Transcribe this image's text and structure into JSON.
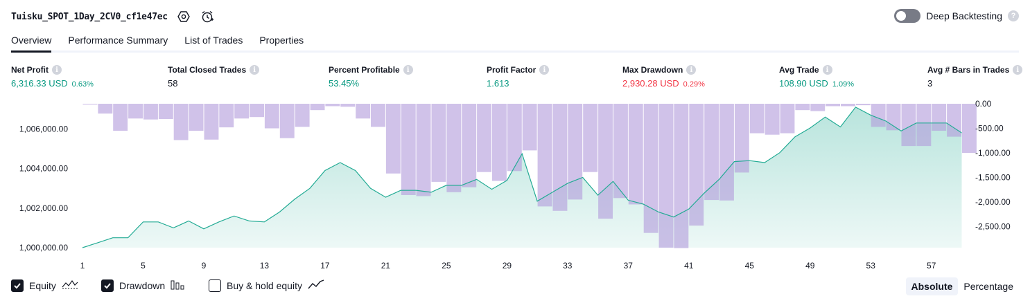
{
  "header": {
    "title": "Tuisku_SPOT_1Day_2CV0_cf1e47ec",
    "settings_icon": "settings-hex-icon",
    "alarm_icon": "alarm-clock-icon"
  },
  "deep_backtesting": {
    "label": "Deep Backtesting",
    "enabled": false,
    "help_icon": "question-icon"
  },
  "tabs": [
    {
      "label": "Overview",
      "active": true
    },
    {
      "label": "Performance Summary",
      "active": false
    },
    {
      "label": "List of Trades",
      "active": false
    },
    {
      "label": "Properties",
      "active": false
    }
  ],
  "metrics": [
    {
      "label": "Net Profit",
      "value": "6,316.33 USD",
      "pct": "0.63%",
      "color": "#089981"
    },
    {
      "label": "Total Closed Trades",
      "value": "58",
      "pct": "",
      "color": "#131722"
    },
    {
      "label": "Percent Profitable",
      "value": "53.45%",
      "pct": "",
      "color": "#089981"
    },
    {
      "label": "Profit Factor",
      "value": "1.613",
      "pct": "",
      "color": "#089981"
    },
    {
      "label": "Max Drawdown",
      "value": "2,930.28 USD",
      "pct": "0.29%",
      "color": "#f23645"
    },
    {
      "label": "Avg Trade",
      "value": "108.90 USD",
      "pct": "1.09%",
      "color": "#089981"
    },
    {
      "label": "Avg # Bars in Trades",
      "value": "3",
      "pct": "",
      "color": "#131722"
    }
  ],
  "info_glyph": "i",
  "help_glyph": "?",
  "chart_data": {
    "type": "area",
    "left_axis_ticks": [
      "1,006,000.00",
      "1,004,000.00",
      "1,002,000.00",
      "1,000,000.00"
    ],
    "left_axis_values": [
      1006000,
      1004000,
      1002000,
      1000000
    ],
    "right_axis_ticks": [
      "0.00",
      "-500.00",
      "-1,000.00",
      "-1,500.00",
      "-2,000.00",
      "-2,500.00"
    ],
    "right_axis_values": [
      0,
      -500,
      -1000,
      -1500,
      -2000,
      -2500
    ],
    "x_ticks": [
      "1",
      "5",
      "9",
      "13",
      "17",
      "21",
      "25",
      "29",
      "33",
      "37",
      "41",
      "45",
      "49",
      "53",
      "57"
    ],
    "x_tick_values": [
      1,
      5,
      9,
      13,
      17,
      21,
      25,
      29,
      33,
      37,
      41,
      45,
      49,
      53,
      57
    ],
    "equity_ylim": [
      1000000,
      1007200
    ],
    "drawdown_ylim": [
      -2930,
      0
    ],
    "equity": {
      "name": "Equity",
      "x": [
        1,
        2,
        3,
        4,
        5,
        6,
        7,
        8,
        9,
        10,
        11,
        12,
        13,
        14,
        15,
        16,
        17,
        18,
        19,
        20,
        21,
        22,
        23,
        24,
        25,
        26,
        27,
        28,
        29,
        30,
        31,
        32,
        33,
        34,
        35,
        36,
        37,
        38,
        39,
        40,
        41,
        42,
        43,
        44,
        45,
        46,
        47,
        48,
        49,
        50,
        51,
        52,
        53,
        54,
        55,
        56,
        57,
        58,
        59
      ],
      "values": [
        1000000,
        1000250,
        1000500,
        1000500,
        1001300,
        1001300,
        1001000,
        1001350,
        1000950,
        1001300,
        1001600,
        1001350,
        1001300,
        1001800,
        1002450,
        1003000,
        1003900,
        1004300,
        1003900,
        1003000,
        1002550,
        1002900,
        1002900,
        1002800,
        1003150,
        1003150,
        1003450,
        1002950,
        1003400,
        1004750,
        1002350,
        1002800,
        1003250,
        1003550,
        1002650,
        1003350,
        1002400,
        1002200,
        1001800,
        1001550,
        1001950,
        1002750,
        1003450,
        1004350,
        1004400,
        1004300,
        1004800,
        1005600,
        1006050,
        1006600,
        1006100,
        1007100,
        1006700,
        1006400,
        1005900,
        1006300,
        1006300,
        1006300,
        1005800
      ]
    },
    "drawdown": {
      "name": "Drawdown",
      "values": [
        -15,
        -200,
        -550,
        -300,
        -320,
        -310,
        -740,
        -550,
        -730,
        -480,
        -300,
        -270,
        -500,
        -700,
        -470,
        -130,
        -50,
        -60,
        -300,
        -470,
        -1420,
        -1860,
        -1880,
        -1590,
        -1800,
        -1700,
        -1390,
        -1570,
        -1370,
        -950,
        -2090,
        -2180,
        -1950,
        -1390,
        -2340,
        -1920,
        -2050,
        -2630,
        -2930,
        -2940,
        -2480,
        -1960,
        -1970,
        -1400,
        -600,
        -630,
        -600,
        -130,
        -150,
        -50,
        -50,
        -30,
        -470,
        -540,
        -860,
        -860,
        -550,
        -670,
        -1000
      ]
    },
    "legend": [
      {
        "label": "Equity",
        "checked": true,
        "icon": "equity-line-icon"
      },
      {
        "label": "Drawdown",
        "checked": true,
        "icon": "drawdown-bars-icon"
      },
      {
        "label": "Buy & hold equity",
        "checked": false,
        "icon": "buy-hold-line-icon"
      }
    ],
    "colors": {
      "equity_line": "#22ab94",
      "equity_fill": "#22ab94",
      "drawdown": "#b39ddb"
    },
    "grid": false
  },
  "modes": [
    {
      "label": "Absolute",
      "active": true
    },
    {
      "label": "Percentage",
      "active": false
    }
  ]
}
